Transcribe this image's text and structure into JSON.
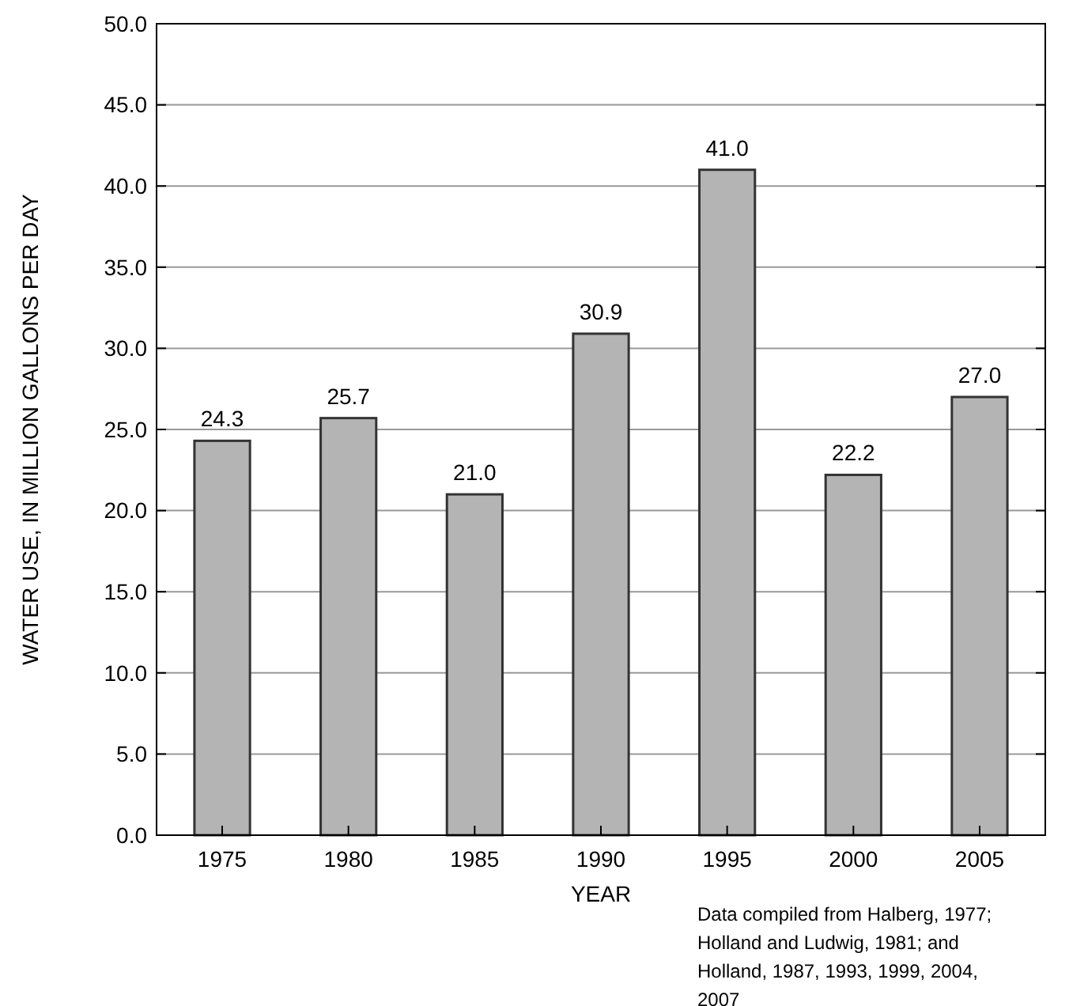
{
  "chart_data": {
    "type": "bar",
    "xlabel": "YEAR",
    "ylabel": "WATER USE, IN MILLION GALLONS PER DAY",
    "categories": [
      "1975",
      "1980",
      "1985",
      "1990",
      "1995",
      "2000",
      "2005"
    ],
    "values": [
      24.3,
      25.7,
      21.0,
      30.9,
      41.0,
      22.2,
      27.0
    ],
    "value_labels": [
      "24.3",
      "25.7",
      "21.0",
      "30.9",
      "41.0",
      "22.2",
      "27.0"
    ],
    "color": "#b4b4b4",
    "ylim": [
      0,
      50
    ],
    "yticks": [
      {
        "value": 0,
        "label": "0.0"
      },
      {
        "value": 5,
        "label": "5.0"
      },
      {
        "value": 10,
        "label": "10.0"
      },
      {
        "value": 15,
        "label": "15.0"
      },
      {
        "value": 20,
        "label": "20.0"
      },
      {
        "value": 25,
        "label": "25.0"
      },
      {
        "value": 30,
        "label": "30.0"
      },
      {
        "value": 35,
        "label": "35.0"
      },
      {
        "value": 40,
        "label": "40.0"
      },
      {
        "value": 45,
        "label": "45.0"
      },
      {
        "value": 50,
        "label": "50.0"
      }
    ],
    "grid": "y",
    "annotations": [
      "Data compiled from Halberg, 1977; Holland and Ludwig, 1981; and Holland, 1987, 1993, 1999, 2004, 2007"
    ]
  }
}
